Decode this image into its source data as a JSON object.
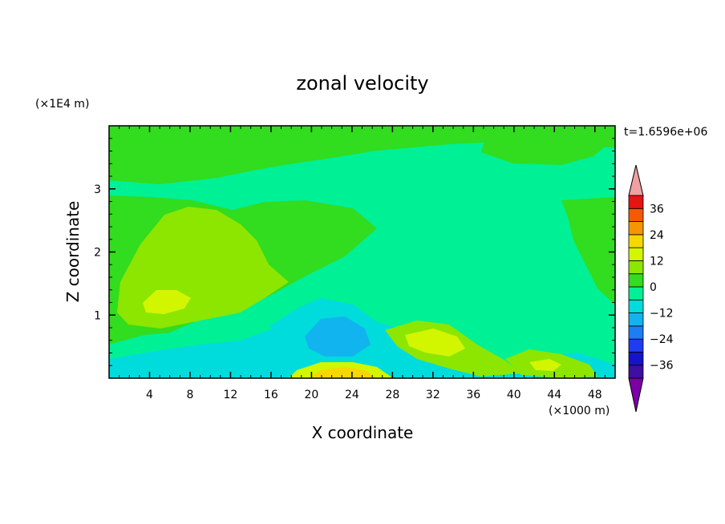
{
  "chart_data": {
    "type": "heatmap",
    "title": "zonal velocity",
    "xlabel": "X coordinate",
    "ylabel": "Z coordinate",
    "x_unit_label": "(×1000 m)",
    "y_unit_label": "(×1E4 m)",
    "time_label": "t=1.6596e+06",
    "xlim": [
      0,
      50
    ],
    "ylim": [
      0,
      4
    ],
    "x_ticks": [
      4,
      8,
      12,
      16,
      20,
      24,
      28,
      32,
      36,
      40,
      44,
      48
    ],
    "y_ticks": [
      1,
      2,
      3
    ],
    "colorbar": {
      "levels": [
        -42,
        -36,
        -30,
        -24,
        -18,
        -12,
        -6,
        0,
        6,
        12,
        18,
        24,
        30,
        36,
        42
      ],
      "colors": [
        "#7b00a8",
        "#3e0fa0",
        "#1414c8",
        "#1e3cf0",
        "#1c7ef5",
        "#12b4f0",
        "#00dcdc",
        "#00f096",
        "#32dc1e",
        "#8ce600",
        "#d2f500",
        "#f5d800",
        "#f59600",
        "#f55a00",
        "#e61414",
        "#f0a0a0"
      ],
      "tick_labels": [
        "36",
        "24",
        "12",
        "0",
        "−12",
        "−24",
        "−36"
      ],
      "tick_values": [
        36,
        24,
        12,
        0,
        -12,
        -24,
        -36
      ]
    },
    "regions": [
      {
        "label": "upper-left and upper-right near-zero positive",
        "value": 3
      },
      {
        "label": "central column weak negative",
        "value": -3
      },
      {
        "label": "mid-left positive lobe",
        "value": 9
      },
      {
        "label": "lower-center surface jet",
        "value": 22
      },
      {
        "label": "lower-center negative core",
        "value": -10
      },
      {
        "label": "near x=32 z=0.6 positive lobe",
        "value": 14
      },
      {
        "label": "near x=43 z=0.2 positive lobe",
        "value": 16
      }
    ]
  }
}
